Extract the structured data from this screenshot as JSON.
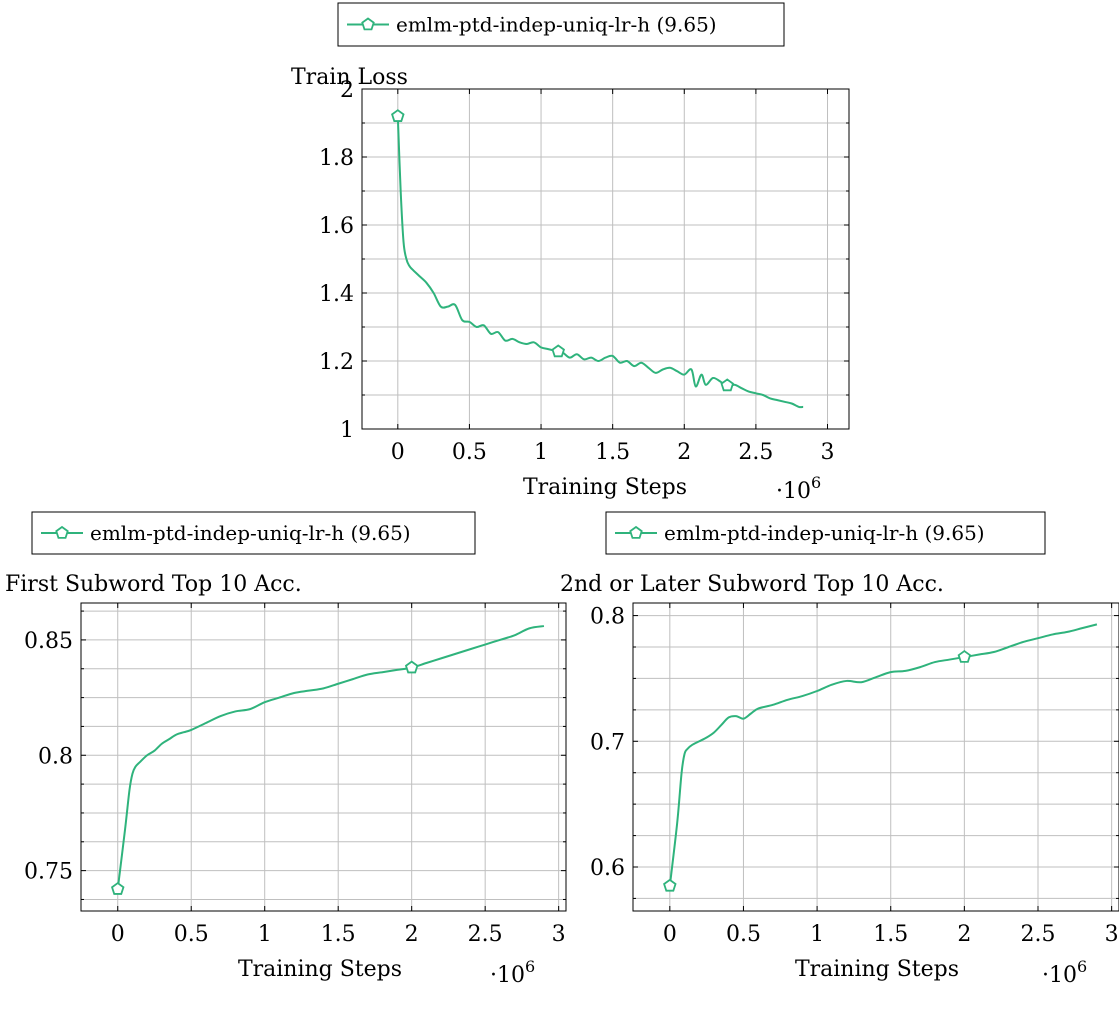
{
  "colors": {
    "series": "#2fb37c",
    "grid": "#bfbfbf",
    "axis": "#000000",
    "background": "#ffffff"
  },
  "chart_data": [
    {
      "type": "line",
      "title": "Train Loss",
      "xlabel": "Training Steps",
      "x_multiplier": "·10",
      "x_multiplier_exp": "6",
      "ylabel": "",
      "xlim": [
        -0.25,
        3.15
      ],
      "ylim": [
        1,
        2
      ],
      "xticks": [
        0,
        0.5,
        1,
        1.5,
        2,
        2.5,
        3
      ],
      "yticks": [
        1,
        1.2,
        1.4,
        1.6,
        1.8,
        2
      ],
      "grid": true,
      "marker": "pentagon",
      "legend": {
        "position": "top",
        "entries": [
          "emlm-ptd-indep-uniq-lr-h (9.65)"
        ]
      },
      "series": [
        {
          "name": "emlm-ptd-indep-uniq-lr-h (9.65)",
          "x": [
            0,
            0.02,
            0.04,
            0.06,
            0.08,
            0.1,
            0.15,
            0.2,
            0.25,
            0.3,
            0.35,
            0.4,
            0.45,
            0.5,
            0.55,
            0.6,
            0.65,
            0.7,
            0.75,
            0.8,
            0.85,
            0.9,
            0.95,
            1.0,
            1.05,
            1.1,
            1.15,
            1.2,
            1.25,
            1.3,
            1.35,
            1.4,
            1.45,
            1.5,
            1.55,
            1.6,
            1.65,
            1.7,
            1.75,
            1.8,
            1.85,
            1.9,
            1.95,
            2.0,
            2.05,
            2.08,
            2.12,
            2.15,
            2.2,
            2.25,
            2.3,
            2.35,
            2.4,
            2.45,
            2.5,
            2.55,
            2.6,
            2.65,
            2.7,
            2.75,
            2.8,
            2.83
          ],
          "y": [
            1.92,
            1.7,
            1.55,
            1.5,
            1.48,
            1.47,
            1.45,
            1.43,
            1.4,
            1.36,
            1.36,
            1.365,
            1.32,
            1.315,
            1.3,
            1.305,
            1.28,
            1.285,
            1.26,
            1.265,
            1.255,
            1.25,
            1.255,
            1.24,
            1.235,
            1.23,
            1.225,
            1.21,
            1.22,
            1.205,
            1.21,
            1.2,
            1.21,
            1.215,
            1.195,
            1.2,
            1.185,
            1.195,
            1.18,
            1.165,
            1.175,
            1.18,
            1.17,
            1.16,
            1.175,
            1.125,
            1.16,
            1.13,
            1.15,
            1.14,
            1.125,
            1.13,
            1.12,
            1.11,
            1.105,
            1.1,
            1.09,
            1.085,
            1.08,
            1.075,
            1.065,
            1.065
          ]
        }
      ],
      "marker_x": [
        0,
        1.12,
        2.3
      ],
      "marker_y": [
        1.92,
        1.228,
        1.128
      ]
    },
    {
      "type": "line",
      "title": "First Subword Top 10 Acc.",
      "xlabel": "Training Steps",
      "x_multiplier": "·10",
      "x_multiplier_exp": "6",
      "ylabel": "",
      "xlim": [
        -0.25,
        3.05
      ],
      "ylim": [
        0.7325,
        0.866
      ],
      "xticks": [
        0,
        0.5,
        1,
        1.5,
        2,
        2.5,
        3
      ],
      "yticks": [
        0.75,
        0.8,
        0.85
      ],
      "minor_yticks": [
        0.7375,
        0.7625,
        0.775,
        0.7875,
        0.8125,
        0.825,
        0.8375,
        0.8625
      ],
      "grid": true,
      "marker": "pentagon",
      "legend": {
        "position": "top",
        "entries": [
          "emlm-ptd-indep-uniq-lr-h (9.65)"
        ]
      },
      "series": [
        {
          "name": "emlm-ptd-indep-uniq-lr-h (9.65)",
          "x": [
            0,
            0.05,
            0.08,
            0.1,
            0.12,
            0.15,
            0.2,
            0.25,
            0.3,
            0.35,
            0.4,
            0.45,
            0.5,
            0.6,
            0.7,
            0.8,
            0.9,
            1.0,
            1.1,
            1.2,
            1.3,
            1.4,
            1.5,
            1.6,
            1.7,
            1.8,
            1.9,
            2.0,
            2.1,
            2.2,
            2.3,
            2.4,
            2.5,
            2.6,
            2.7,
            2.8,
            2.9
          ],
          "y": [
            0.742,
            0.768,
            0.785,
            0.792,
            0.795,
            0.797,
            0.8,
            0.802,
            0.805,
            0.807,
            0.809,
            0.81,
            0.811,
            0.814,
            0.817,
            0.819,
            0.82,
            0.823,
            0.825,
            0.827,
            0.828,
            0.829,
            0.831,
            0.833,
            0.835,
            0.836,
            0.837,
            0.838,
            0.84,
            0.842,
            0.844,
            0.846,
            0.848,
            0.85,
            0.852,
            0.855,
            0.856
          ]
        }
      ],
      "marker_x": [
        0,
        2.0
      ],
      "marker_y": [
        0.742,
        0.838
      ]
    },
    {
      "type": "line",
      "title": "2nd or Later Subword Top 10 Acc.",
      "xlabel": "Training Steps",
      "x_multiplier": "·10",
      "x_multiplier_exp": "6",
      "ylabel": "",
      "xlim": [
        -0.25,
        3.05
      ],
      "ylim": [
        0.565,
        0.81
      ],
      "xticks": [
        0,
        0.5,
        1,
        1.5,
        2,
        2.5,
        3
      ],
      "yticks": [
        0.6,
        0.7,
        0.8
      ],
      "minor_yticks": [
        0.575,
        0.625,
        0.65,
        0.675,
        0.725,
        0.75,
        0.775
      ],
      "grid": true,
      "marker": "pentagon",
      "legend": {
        "position": "top",
        "entries": [
          "emlm-ptd-indep-uniq-lr-h (9.65)"
        ]
      },
      "series": [
        {
          "name": "emlm-ptd-indep-uniq-lr-h (9.65)",
          "x": [
            0,
            0.05,
            0.08,
            0.1,
            0.12,
            0.15,
            0.2,
            0.25,
            0.3,
            0.35,
            0.4,
            0.45,
            0.5,
            0.55,
            0.6,
            0.7,
            0.8,
            0.9,
            1.0,
            1.1,
            1.2,
            1.3,
            1.4,
            1.5,
            1.6,
            1.7,
            1.8,
            1.9,
            2.0,
            2.1,
            2.2,
            2.3,
            2.4,
            2.5,
            2.6,
            2.7,
            2.8,
            2.9
          ],
          "y": [
            0.585,
            0.635,
            0.675,
            0.69,
            0.694,
            0.697,
            0.7,
            0.703,
            0.707,
            0.713,
            0.719,
            0.72,
            0.718,
            0.722,
            0.726,
            0.729,
            0.733,
            0.736,
            0.74,
            0.745,
            0.748,
            0.747,
            0.751,
            0.755,
            0.756,
            0.759,
            0.763,
            0.765,
            0.767,
            0.769,
            0.771,
            0.775,
            0.779,
            0.782,
            0.785,
            0.787,
            0.79,
            0.793
          ]
        }
      ],
      "marker_x": [
        0,
        2.0
      ],
      "marker_y": [
        0.585,
        0.767
      ]
    }
  ]
}
